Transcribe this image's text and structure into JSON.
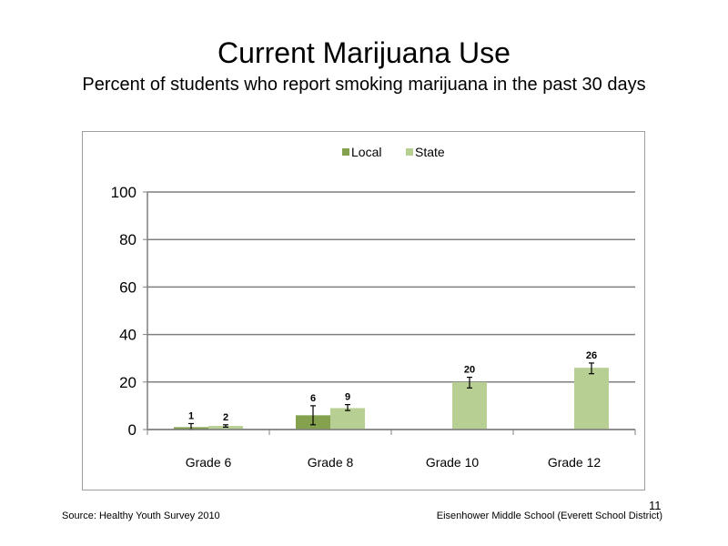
{
  "slide": {
    "title": "Current Marijuana Use",
    "subtitle": "Percent of students who report smoking marijuana in the past 30 days",
    "source": "Source: Healthy Youth Survey 2010",
    "school": "Eisenhower Middle School (Everett School District)",
    "page_number": "11"
  },
  "colors": {
    "local": "#84a24e",
    "state": "#b8cf94",
    "axis": "#7f7f7f",
    "grid": "#7f7f7f"
  },
  "chart_data": {
    "type": "bar",
    "categories": [
      "Grade 6",
      "Grade 8",
      "Grade 10",
      "Grade 12"
    ],
    "series": [
      {
        "name": "Local",
        "values": [
          1,
          6,
          null,
          null
        ],
        "labels": [
          "1",
          "6",
          "",
          ""
        ]
      },
      {
        "name": "State",
        "values": [
          1.5,
          9,
          20,
          26
        ],
        "labels": [
          "2",
          "9",
          "20",
          "26"
        ]
      }
    ],
    "error_bars": {
      "Local": [
        [
          0,
          2.5
        ],
        [
          2,
          10
        ],
        null,
        null
      ],
      "State": [
        [
          1,
          2
        ],
        [
          8,
          10.5
        ],
        [
          17.5,
          22
        ],
        [
          23.5,
          28
        ]
      ]
    },
    "yticks": [
      0,
      20,
      40,
      60,
      80,
      100
    ],
    "ylim": [
      0,
      100
    ],
    "legend_position": "top-center",
    "grid": true
  }
}
